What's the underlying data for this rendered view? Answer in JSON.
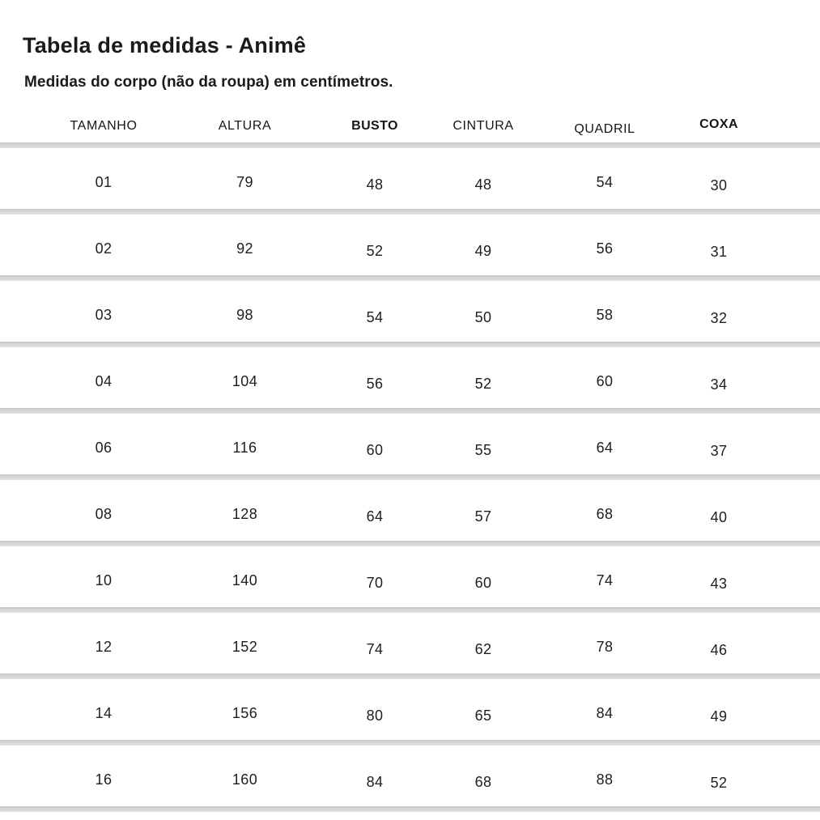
{
  "page": {
    "title": "Tabela de medidas - Animê",
    "subtitle": "Medidas do corpo (não da roupa) em centímetros."
  },
  "table": {
    "headers": [
      "TAMANHO",
      "ALTURA",
      "BUSTO",
      "CINTURA",
      "QUADRIL",
      "COXA"
    ],
    "rows": [
      [
        "01",
        "79",
        "48",
        "48",
        "54",
        "30"
      ],
      [
        "02",
        "92",
        "52",
        "49",
        "56",
        "31"
      ],
      [
        "03",
        "98",
        "54",
        "50",
        "58",
        "32"
      ],
      [
        "04",
        "104",
        "56",
        "52",
        "60",
        "34"
      ],
      [
        "06",
        "116",
        "60",
        "55",
        "64",
        "37"
      ],
      [
        "08",
        "128",
        "64",
        "57",
        "68",
        "40"
      ],
      [
        "10",
        "140",
        "70",
        "60",
        "74",
        "43"
      ],
      [
        "12",
        "152",
        "74",
        "62",
        "78",
        "46"
      ],
      [
        "14",
        "156",
        "80",
        "65",
        "84",
        "49"
      ],
      [
        "16",
        "160",
        "84",
        "68",
        "88",
        "52"
      ]
    ]
  },
  "colors": {
    "background": "#ffffff",
    "text": "#1e1e1e",
    "divider": "#d9d9d9"
  }
}
